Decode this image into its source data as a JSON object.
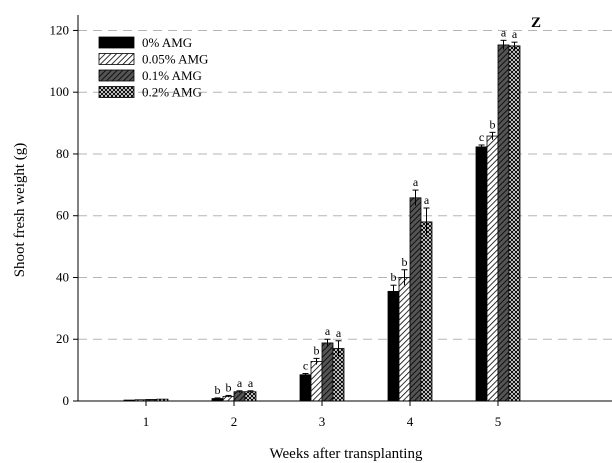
{
  "chart_data": {
    "type": "bar",
    "title": "",
    "xlabel": "Weeks after transplanting",
    "ylabel": "Shoot fresh weight (g)",
    "categories": [
      "1",
      "2",
      "3",
      "4",
      "5"
    ],
    "ylim": [
      0,
      125
    ],
    "yticks": [
      0,
      20,
      40,
      60,
      80,
      100,
      120
    ],
    "grid": true,
    "legend_position": "top-left",
    "annotation": "Z",
    "series": [
      {
        "name": "0% AMG",
        "pattern": "solid-black",
        "values": [
          0.3,
          0.8,
          8.5,
          35.5,
          82.3
        ],
        "errors": [
          0,
          0.2,
          0.4,
          2.0,
          0.6
        ],
        "letters": [
          "",
          "b",
          "c",
          "b",
          "c"
        ]
      },
      {
        "name": "0.05% AMG",
        "pattern": "diagonal-light",
        "values": [
          0.4,
          1.5,
          12.8,
          40.0,
          85.8
        ],
        "errors": [
          0,
          0.3,
          1.0,
          2.5,
          1.2
        ],
        "letters": [
          "",
          "b",
          "b",
          "b",
          "b"
        ]
      },
      {
        "name": "0.1% AMG",
        "pattern": "diagonal-dark",
        "values": [
          0.5,
          3.0,
          18.8,
          65.8,
          115.3
        ],
        "errors": [
          0,
          0.3,
          1.2,
          2.5,
          1.5
        ],
        "letters": [
          "",
          "a",
          "a",
          "a",
          "a"
        ]
      },
      {
        "name": "0.2% AMG",
        "pattern": "crosshatch",
        "values": [
          0.6,
          3.0,
          17.0,
          58.0,
          115.0
        ],
        "errors": [
          0,
          0.3,
          2.5,
          4.5,
          1.2
        ],
        "letters": [
          "",
          "a",
          "a",
          "a",
          "a"
        ]
      }
    ]
  }
}
